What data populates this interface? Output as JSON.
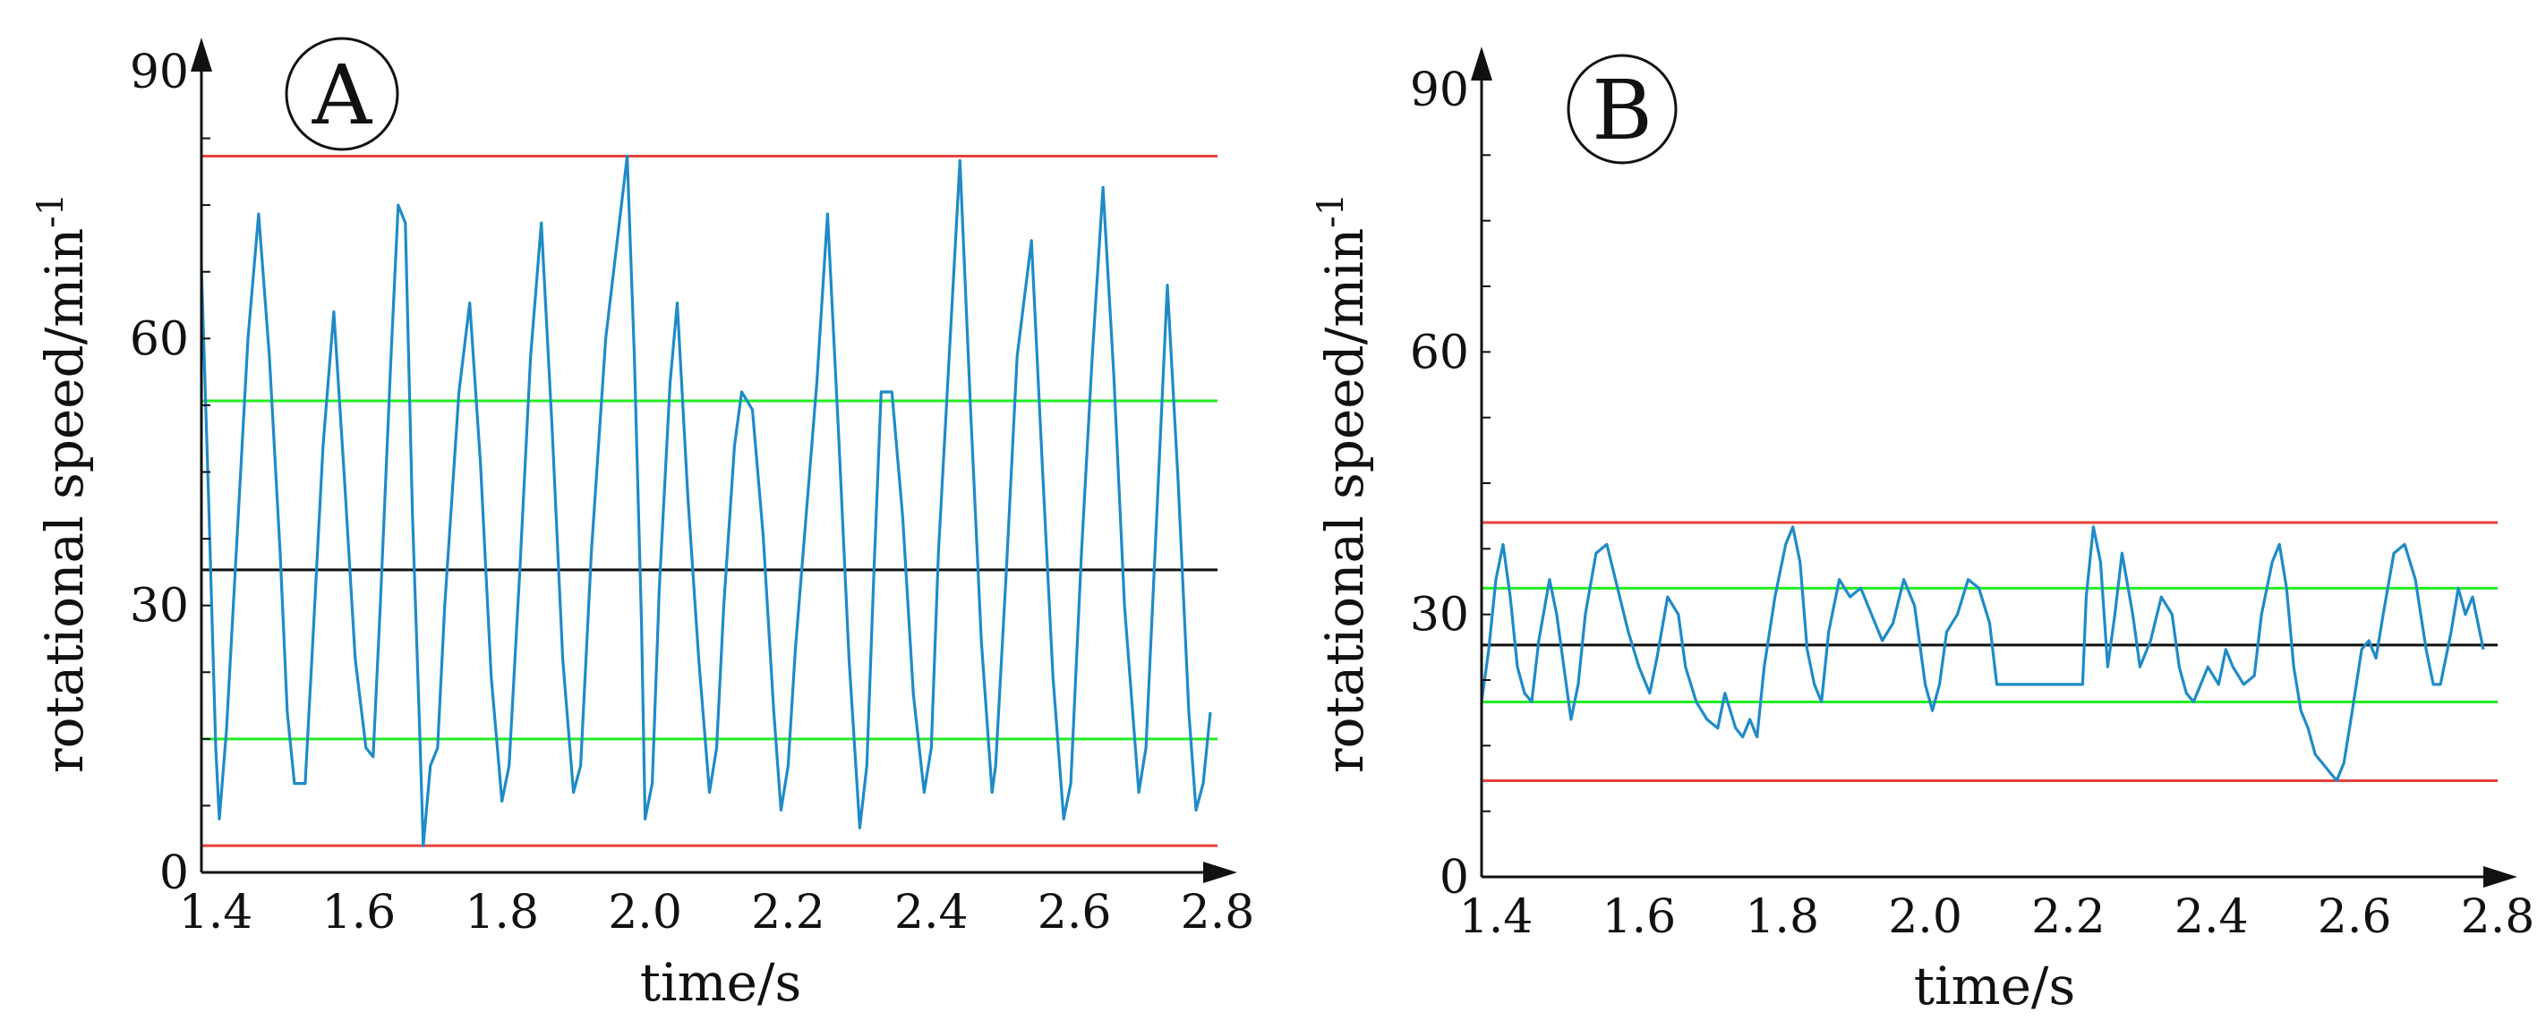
{
  "chart_data": [
    {
      "type": "line",
      "panel_label": "A",
      "xlabel": "time/s",
      "ylabel_main": "rotational speed/min",
      "ylabel_sup": "-1",
      "xlim": [
        1.38,
        2.8
      ],
      "ylim": [
        0,
        90
      ],
      "xticks": [
        "1.4",
        "1.6",
        "1.8",
        "2.0",
        "2.2",
        "2.4",
        "2.6",
        "2.8"
      ],
      "yticks": [
        "0",
        "30",
        "60",
        "90"
      ],
      "reference_lines": [
        {
          "name": "upper-limit",
          "value": 80.5,
          "color": "#e8413c"
        },
        {
          "name": "upper-band",
          "value": 53.0,
          "color": "#22ee22"
        },
        {
          "name": "mean",
          "value": 34.0,
          "color": "#111111"
        },
        {
          "name": "lower-band",
          "value": 15.0,
          "color": "#22ee22"
        },
        {
          "name": "lower-limit",
          "value": 3.0,
          "color": "#e8413c"
        }
      ],
      "series": [
        {
          "name": "rotational speed",
          "color": "#1e8bc8",
          "points": [
            [
              1.38,
              68
            ],
            [
              1.39,
              42
            ],
            [
              1.4,
              14
            ],
            [
              1.405,
              6
            ],
            [
              1.415,
              16
            ],
            [
              1.43,
              38
            ],
            [
              1.445,
              60
            ],
            [
              1.46,
              74
            ],
            [
              1.475,
              58
            ],
            [
              1.49,
              36
            ],
            [
              1.5,
              18
            ],
            [
              1.51,
              10
            ],
            [
              1.525,
              10
            ],
            [
              1.535,
              25
            ],
            [
              1.55,
              48
            ],
            [
              1.565,
              63
            ],
            [
              1.58,
              44
            ],
            [
              1.595,
              24
            ],
            [
              1.61,
              14
            ],
            [
              1.62,
              13
            ],
            [
              1.63,
              30
            ],
            [
              1.645,
              58
            ],
            [
              1.655,
              75
            ],
            [
              1.665,
              73
            ],
            [
              1.675,
              40
            ],
            [
              1.685,
              16
            ],
            [
              1.69,
              3
            ],
            [
              1.7,
              12
            ],
            [
              1.71,
              14
            ],
            [
              1.72,
              30
            ],
            [
              1.74,
              54
            ],
            [
              1.755,
              64
            ],
            [
              1.77,
              46
            ],
            [
              1.785,
              22
            ],
            [
              1.8,
              8
            ],
            [
              1.81,
              12
            ],
            [
              1.825,
              34
            ],
            [
              1.84,
              58
            ],
            [
              1.855,
              73
            ],
            [
              1.87,
              50
            ],
            [
              1.885,
              24
            ],
            [
              1.9,
              9
            ],
            [
              1.91,
              12
            ],
            [
              1.925,
              36
            ],
            [
              1.945,
              60
            ],
            [
              1.975,
              80.5
            ],
            [
              1.985,
              58
            ],
            [
              1.995,
              28
            ],
            [
              2.0,
              6
            ],
            [
              2.01,
              10
            ],
            [
              2.02,
              32
            ],
            [
              2.035,
              55
            ],
            [
              2.045,
              64
            ],
            [
              2.06,
              42
            ],
            [
              2.075,
              24
            ],
            [
              2.09,
              9
            ],
            [
              2.1,
              14
            ],
            [
              2.11,
              30
            ],
            [
              2.125,
              48
            ],
            [
              2.135,
              54
            ],
            [
              2.15,
              52
            ],
            [
              2.165,
              38
            ],
            [
              2.18,
              18
            ],
            [
              2.19,
              7
            ],
            [
              2.2,
              12
            ],
            [
              2.21,
              25
            ],
            [
              2.225,
              40
            ],
            [
              2.24,
              55
            ],
            [
              2.255,
              74
            ],
            [
              2.27,
              50
            ],
            [
              2.285,
              24
            ],
            [
              2.3,
              5
            ],
            [
              2.31,
              12
            ],
            [
              2.32,
              34
            ],
            [
              2.33,
              54
            ],
            [
              2.345,
              54
            ],
            [
              2.36,
              40
            ],
            [
              2.375,
              20
            ],
            [
              2.39,
              9
            ],
            [
              2.4,
              14
            ],
            [
              2.41,
              36
            ],
            [
              2.425,
              58
            ],
            [
              2.44,
              80
            ],
            [
              2.455,
              52
            ],
            [
              2.47,
              26
            ],
            [
              2.485,
              9
            ],
            [
              2.49,
              12
            ],
            [
              2.505,
              34
            ],
            [
              2.52,
              58
            ],
            [
              2.54,
              71
            ],
            [
              2.555,
              46
            ],
            [
              2.57,
              22
            ],
            [
              2.585,
              6
            ],
            [
              2.595,
              10
            ],
            [
              2.61,
              36
            ],
            [
              2.625,
              58
            ],
            [
              2.64,
              77
            ],
            [
              2.655,
              56
            ],
            [
              2.67,
              30
            ],
            [
              2.69,
              9
            ],
            [
              2.7,
              14
            ],
            [
              2.715,
              40
            ],
            [
              2.73,
              66
            ],
            [
              2.745,
              44
            ],
            [
              2.76,
              18
            ],
            [
              2.77,
              7
            ],
            [
              2.78,
              10
            ],
            [
              2.79,
              18
            ]
          ]
        }
      ]
    },
    {
      "type": "line",
      "panel_label": "B",
      "xlabel": "time/s",
      "ylabel_main": "rotational speed/min",
      "ylabel_sup": "-1",
      "xlim": [
        1.38,
        2.8
      ],
      "ylim": [
        0,
        90
      ],
      "xticks": [
        "1.4",
        "1.6",
        "1.8",
        "2.0",
        "2.2",
        "2.4",
        "2.6",
        "2.8"
      ],
      "yticks": [
        "0",
        "30",
        "60",
        "90"
      ],
      "reference_lines": [
        {
          "name": "upper-limit",
          "value": 40.5,
          "color": "#e8413c"
        },
        {
          "name": "upper-band",
          "value": 33.0,
          "color": "#22ee22"
        },
        {
          "name": "mean",
          "value": 26.5,
          "color": "#111111"
        },
        {
          "name": "lower-band",
          "value": 20.0,
          "color": "#22ee22"
        },
        {
          "name": "lower-limit",
          "value": 11.0,
          "color": "#e8413c"
        }
      ],
      "series": [
        {
          "name": "rotational speed",
          "color": "#1e8bc8",
          "points": [
            [
              1.38,
              20
            ],
            [
              1.39,
              26
            ],
            [
              1.4,
              34
            ],
            [
              1.41,
              38
            ],
            [
              1.42,
              32
            ],
            [
              1.43,
              24
            ],
            [
              1.44,
              21
            ],
            [
              1.45,
              20
            ],
            [
              1.46,
              27
            ],
            [
              1.475,
              34
            ],
            [
              1.485,
              30
            ],
            [
              1.495,
              24
            ],
            [
              1.505,
              18
            ],
            [
              1.515,
              22
            ],
            [
              1.525,
              30
            ],
            [
              1.54,
              37
            ],
            [
              1.555,
              38
            ],
            [
              1.57,
              33
            ],
            [
              1.585,
              28
            ],
            [
              1.6,
              24
            ],
            [
              1.615,
              21
            ],
            [
              1.625,
              25
            ],
            [
              1.64,
              32
            ],
            [
              1.655,
              30
            ],
            [
              1.665,
              24
            ],
            [
              1.68,
              20
            ],
            [
              1.695,
              18
            ],
            [
              1.71,
              17
            ],
            [
              1.72,
              21
            ],
            [
              1.735,
              17
            ],
            [
              1.745,
              16
            ],
            [
              1.755,
              18
            ],
            [
              1.765,
              16
            ],
            [
              1.775,
              24
            ],
            [
              1.79,
              32
            ],
            [
              1.805,
              38
            ],
            [
              1.815,
              40
            ],
            [
              1.825,
              36
            ],
            [
              1.835,
              26
            ],
            [
              1.845,
              22
            ],
            [
              1.855,
              20
            ],
            [
              1.865,
              28
            ],
            [
              1.88,
              34
            ],
            [
              1.895,
              32
            ],
            [
              1.91,
              33
            ],
            [
              1.925,
              30
            ],
            [
              1.94,
              27
            ],
            [
              1.955,
              29
            ],
            [
              1.97,
              34
            ],
            [
              1.985,
              31
            ],
            [
              2.0,
              22
            ],
            [
              2.01,
              19
            ],
            [
              2.02,
              22
            ],
            [
              2.03,
              28
            ],
            [
              2.045,
              30
            ],
            [
              2.06,
              34
            ],
            [
              2.075,
              33
            ],
            [
              2.09,
              29
            ],
            [
              2.1,
              22
            ],
            [
              2.22,
              22
            ],
            [
              2.225,
              32
            ],
            [
              2.235,
              40
            ],
            [
              2.245,
              36
            ],
            [
              2.255,
              24
            ],
            [
              2.265,
              30
            ],
            [
              2.275,
              37
            ],
            [
              2.29,
              30
            ],
            [
              2.3,
              24
            ],
            [
              2.315,
              27
            ],
            [
              2.33,
              32
            ],
            [
              2.345,
              30
            ],
            [
              2.355,
              24
            ],
            [
              2.365,
              21
            ],
            [
              2.375,
              20
            ],
            [
              2.385,
              22
            ],
            [
              2.395,
              24
            ],
            [
              2.41,
              22
            ],
            [
              2.42,
              26
            ],
            [
              2.43,
              24
            ],
            [
              2.445,
              22
            ],
            [
              2.46,
              23
            ],
            [
              2.47,
              30
            ],
            [
              2.485,
              36
            ],
            [
              2.495,
              38
            ],
            [
              2.505,
              33
            ],
            [
              2.515,
              24
            ],
            [
              2.525,
              19
            ],
            [
              2.535,
              17
            ],
            [
              2.545,
              14
            ],
            [
              2.555,
              13
            ],
            [
              2.565,
              12
            ],
            [
              2.575,
              11
            ],
            [
              2.585,
              13
            ],
            [
              2.595,
              18
            ],
            [
              2.61,
              26
            ],
            [
              2.62,
              27
            ],
            [
              2.63,
              25
            ],
            [
              2.64,
              30
            ],
            [
              2.655,
              37
            ],
            [
              2.67,
              38
            ],
            [
              2.685,
              34
            ],
            [
              2.7,
              26
            ],
            [
              2.71,
              22
            ],
            [
              2.72,
              22
            ],
            [
              2.735,
              28
            ],
            [
              2.745,
              33
            ],
            [
              2.755,
              30
            ],
            [
              2.765,
              32
            ],
            [
              2.775,
              28
            ],
            [
              2.78,
              26
            ]
          ]
        }
      ]
    }
  ]
}
